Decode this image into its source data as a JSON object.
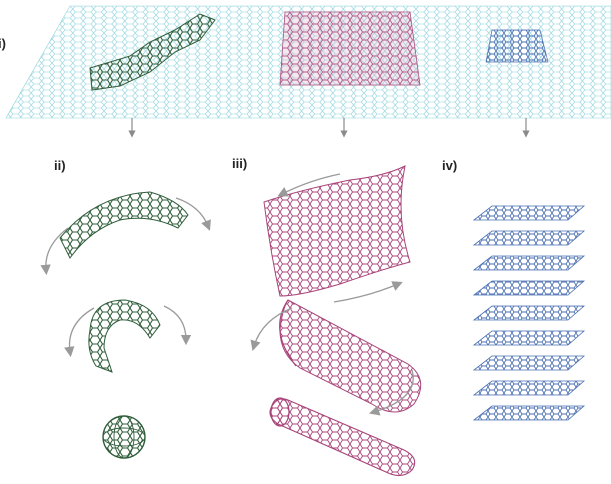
{
  "panel_labels": {
    "i": "i)",
    "ii": "ii)",
    "iii": "iii)",
    "iv": "iv)"
  },
  "colors": {
    "sheet": "#8fd3dc",
    "green_patch": "#2f5d3a",
    "pink_patch": "#a8457a",
    "blue_patch": "#4b6fb3",
    "arrow": "#8a8a8a",
    "curve_arrow": "#9a9a9a"
  },
  "structures": {
    "ii": [
      "fullerene-fragment-open",
      "fullerene-fragment-curled",
      "fullerene-ball"
    ],
    "iii": [
      "rolling-sheet",
      "partial-tube",
      "nanotube"
    ],
    "iv": "graphite-stack",
    "graphite_layer_count": 9
  }
}
